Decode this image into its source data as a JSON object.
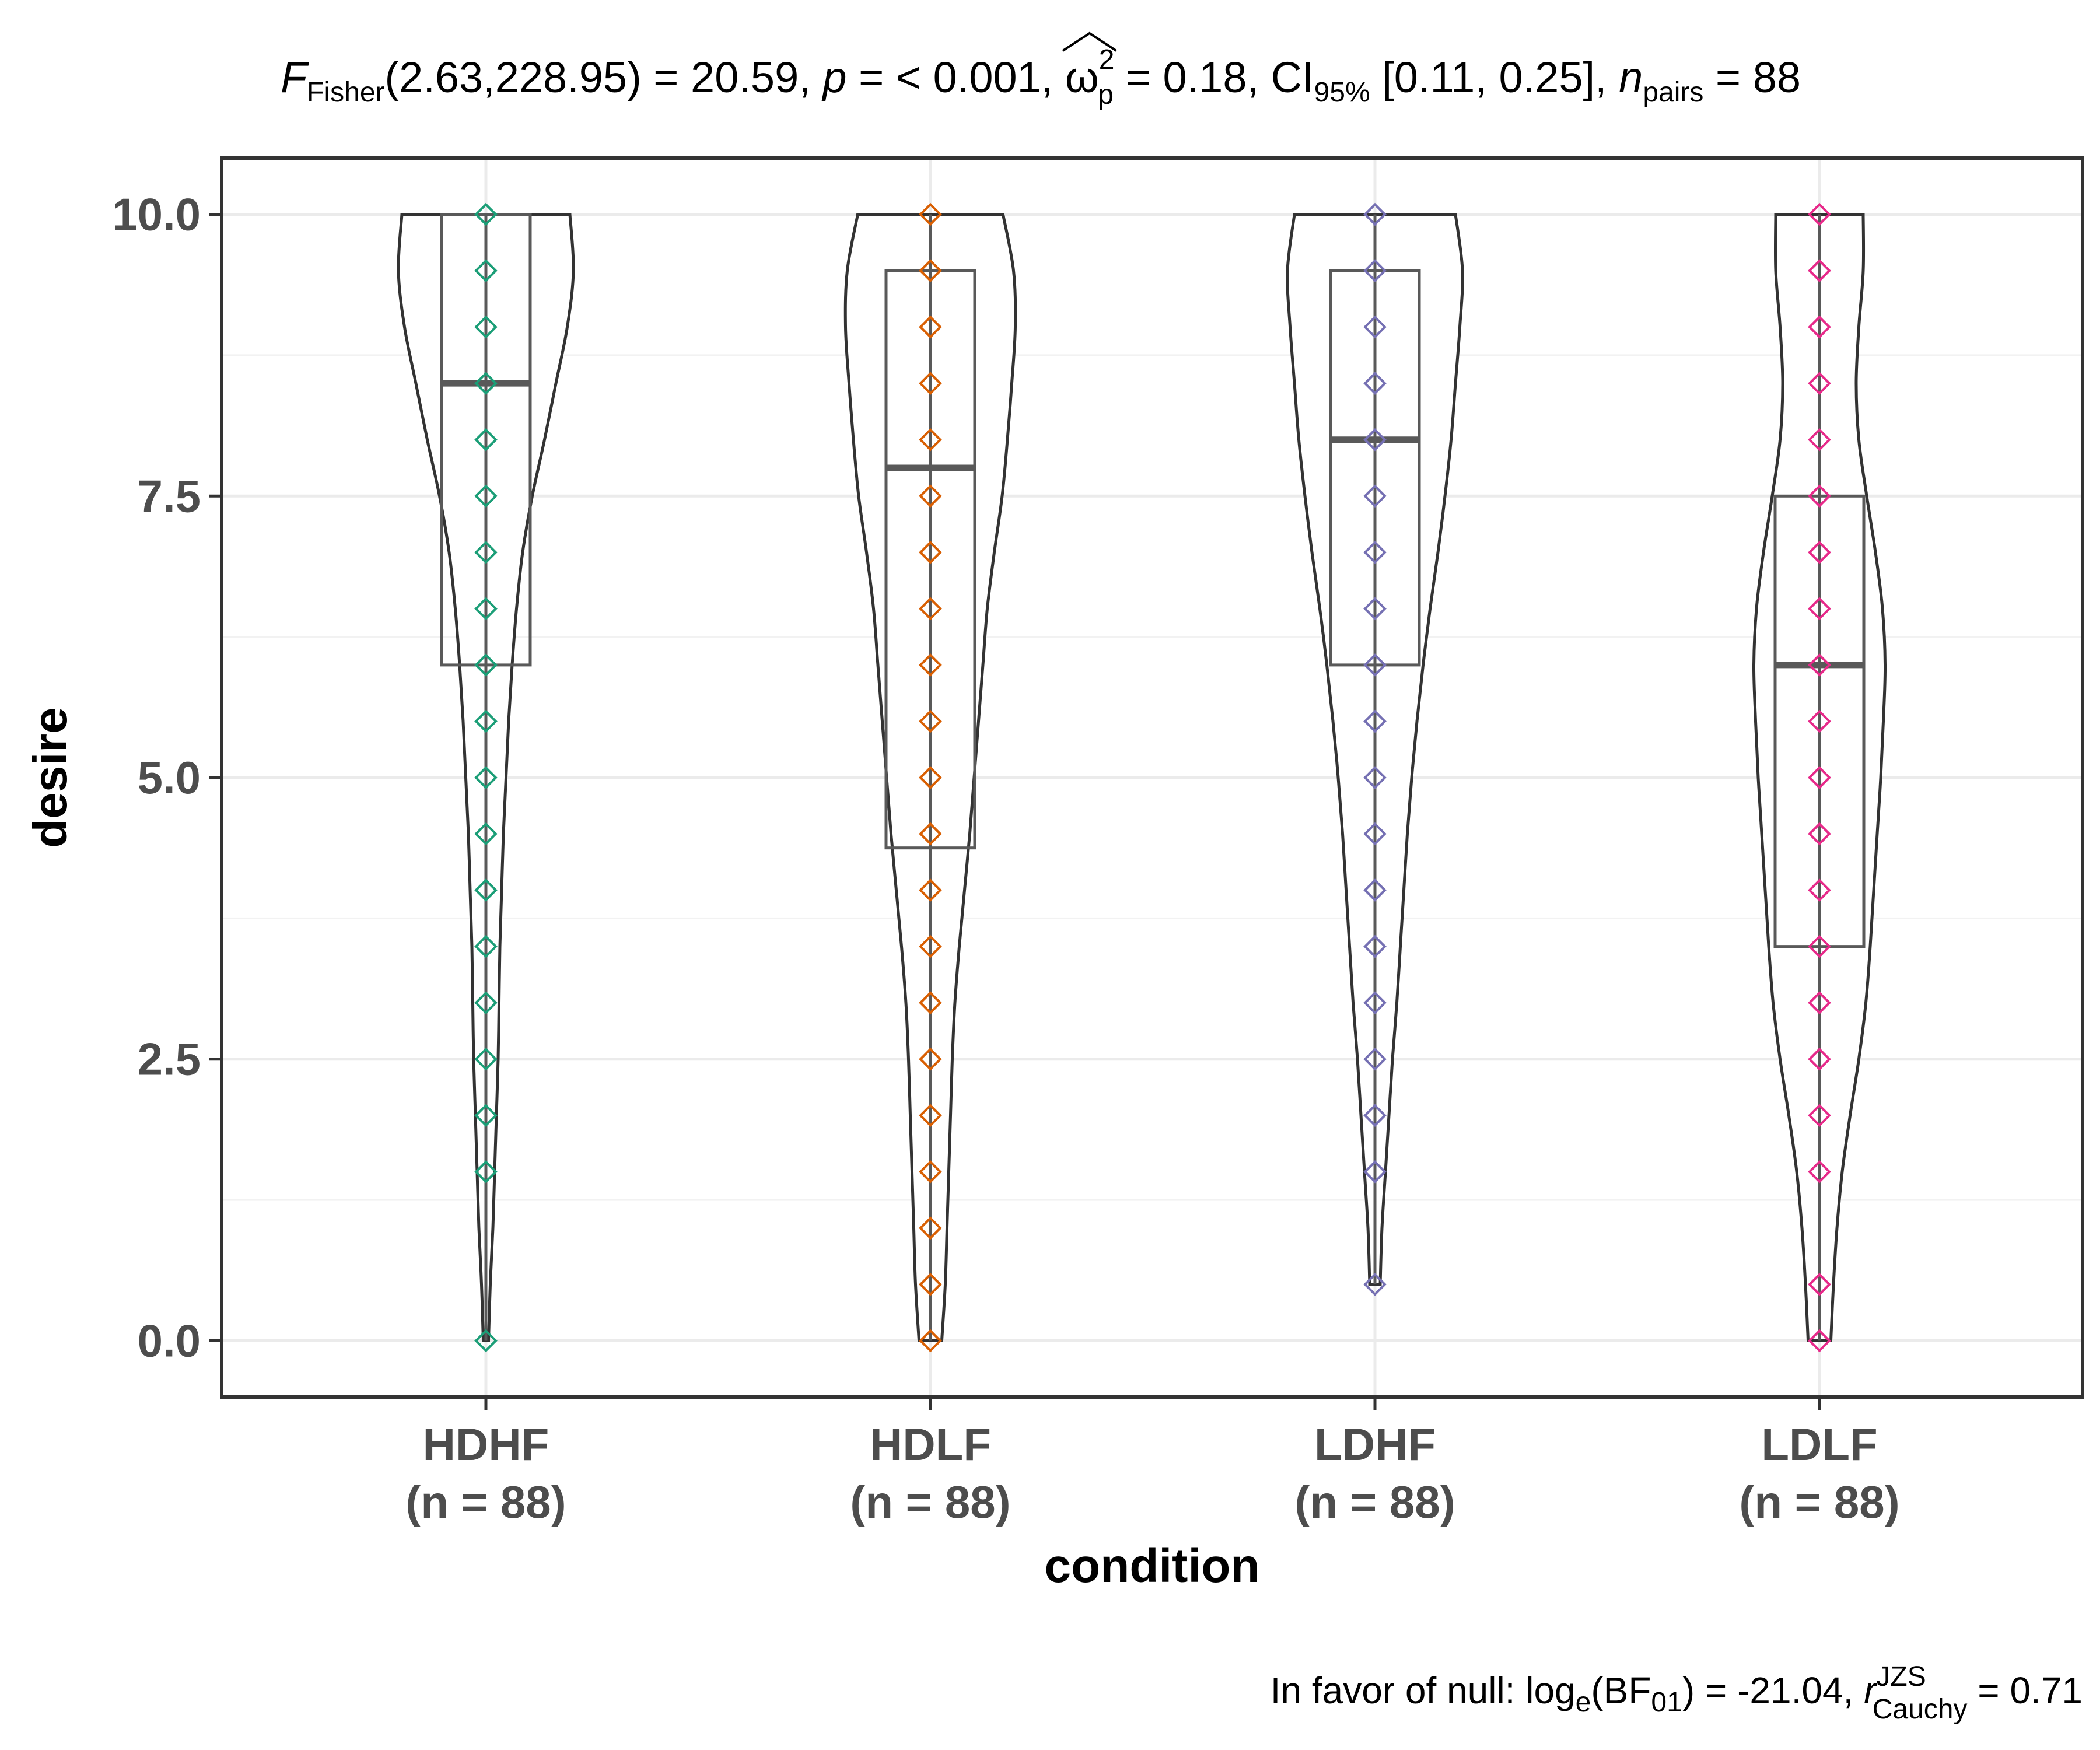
{
  "chart_data": {
    "type": "violin",
    "subtitle": {
      "f_symbol": "F",
      "f_sub": "Fisher",
      "f_args": "(2.63,228.95) = 20.59, ",
      "p_symbol": "p",
      "p_text": " = < 0.001, ",
      "omega_symbol": "ω",
      "omega_sup": "2",
      "omega_sub": "p",
      "omega_text": " = 0.18, CI",
      "ci_sub": "95%",
      "ci_text": " [0.11, 0.25], ",
      "n_symbol": "n",
      "n_sub": "pairs",
      "n_text": " = 88"
    },
    "caption": {
      "prefix": "In favor of null: log",
      "log_sub": "e",
      "bf_open": "(BF",
      "bf_sub": "01",
      "bf_close": ") = -21.04, ",
      "r_symbol": "r",
      "r_sup": "JZS",
      "r_sub": "Cauchy",
      "r_text": " = 0.71"
    },
    "xlabel": "condition",
    "ylabel": "desire",
    "ylim": [
      -0.5,
      10.5
    ],
    "yticks": [
      0.0,
      2.5,
      5.0,
      7.5,
      10.0
    ],
    "ytick_labels": [
      "0.0",
      "2.5",
      "5.0",
      "7.5",
      "10.0"
    ],
    "grid": true,
    "categories": [
      {
        "name": "HDHF",
        "n_label": "(n = 88)",
        "color": "#1b9e77",
        "points": [
          0,
          1.5,
          2,
          2.5,
          3,
          3.5,
          4,
          4.5,
          5,
          5.5,
          6,
          6.5,
          7,
          7.5,
          8,
          8.5,
          9,
          9.5,
          10
        ],
        "box": {
          "q1": 6.0,
          "median": 8.5,
          "q3": 10.0,
          "whisker_low": 0.0,
          "whisker_high": 10.0
        },
        "violin_min": 0.0,
        "violin_max": 10.0,
        "density": [
          [
            0.0,
            0.03
          ],
          [
            0.5,
            0.05
          ],
          [
            1.0,
            0.08
          ],
          [
            1.5,
            0.1
          ],
          [
            2.0,
            0.12
          ],
          [
            2.5,
            0.14
          ],
          [
            3.0,
            0.15
          ],
          [
            3.5,
            0.16
          ],
          [
            4.0,
            0.18
          ],
          [
            4.5,
            0.2
          ],
          [
            5.0,
            0.23
          ],
          [
            5.5,
            0.26
          ],
          [
            6.0,
            0.3
          ],
          [
            6.5,
            0.35
          ],
          [
            7.0,
            0.42
          ],
          [
            7.5,
            0.53
          ],
          [
            8.0,
            0.67
          ],
          [
            8.5,
            0.8
          ],
          [
            9.0,
            0.93
          ],
          [
            9.5,
            1.0
          ],
          [
            10.0,
            0.96
          ]
        ]
      },
      {
        "name": "HDLF",
        "n_label": "(n = 88)",
        "color": "#d95f02",
        "points": [
          0,
          0.5,
          1,
          1.5,
          2,
          2.5,
          3,
          3.5,
          4,
          4.5,
          5,
          5.5,
          6,
          6.5,
          7,
          7.5,
          8,
          8.5,
          9,
          9.5,
          10
        ],
        "box": {
          "q1": 4.375,
          "median": 7.75,
          "q3": 9.5,
          "whisker_low": 0.0,
          "whisker_high": 10.0
        },
        "violin_min": 0.0,
        "violin_max": 10.0,
        "density": [
          [
            0.0,
            0.13
          ],
          [
            0.5,
            0.17
          ],
          [
            1.0,
            0.19
          ],
          [
            1.5,
            0.21
          ],
          [
            2.0,
            0.23
          ],
          [
            2.5,
            0.25
          ],
          [
            3.0,
            0.28
          ],
          [
            3.5,
            0.33
          ],
          [
            4.0,
            0.39
          ],
          [
            4.5,
            0.45
          ],
          [
            5.0,
            0.5
          ],
          [
            5.5,
            0.55
          ],
          [
            6.0,
            0.6
          ],
          [
            6.5,
            0.65
          ],
          [
            7.0,
            0.73
          ],
          [
            7.5,
            0.82
          ],
          [
            8.0,
            0.88
          ],
          [
            8.5,
            0.93
          ],
          [
            9.0,
            0.97
          ],
          [
            9.5,
            0.95
          ],
          [
            10.0,
            0.83
          ]
        ]
      },
      {
        "name": "LDHF",
        "n_label": "(n = 88)",
        "color": "#7570b3",
        "points": [
          0.5,
          1.5,
          2,
          2.5,
          3,
          3.5,
          4,
          4.5,
          5,
          5.5,
          6,
          6.5,
          7,
          7.5,
          8,
          8.5,
          9,
          9.5,
          10
        ],
        "box": {
          "q1": 6.0,
          "median": 8.0,
          "q3": 9.5,
          "whisker_low": 0.5,
          "whisker_high": 10.0
        },
        "violin_min": 0.5,
        "violin_max": 10.0,
        "density": [
          [
            0.5,
            0.06
          ],
          [
            1.0,
            0.08
          ],
          [
            1.5,
            0.12
          ],
          [
            2.0,
            0.16
          ],
          [
            2.5,
            0.2
          ],
          [
            3.0,
            0.25
          ],
          [
            3.5,
            0.29
          ],
          [
            4.0,
            0.33
          ],
          [
            4.5,
            0.37
          ],
          [
            5.0,
            0.42
          ],
          [
            5.5,
            0.48
          ],
          [
            6.0,
            0.55
          ],
          [
            6.5,
            0.63
          ],
          [
            7.0,
            0.72
          ],
          [
            7.5,
            0.8
          ],
          [
            8.0,
            0.87
          ],
          [
            8.5,
            0.92
          ],
          [
            9.0,
            0.97
          ],
          [
            9.5,
            1.0
          ],
          [
            10.0,
            0.92
          ]
        ]
      },
      {
        "name": "LDLF",
        "n_label": "(n = 88)",
        "color": "#e7298a",
        "points": [
          0,
          0.5,
          1.5,
          2,
          2.5,
          3,
          3.5,
          4,
          4.5,
          5,
          5.5,
          6,
          6.5,
          7,
          7.5,
          8,
          8.5,
          9,
          9.5,
          10
        ],
        "box": {
          "q1": 3.5,
          "median": 6.0,
          "q3": 7.5,
          "whisker_low": 0.0,
          "whisker_high": 10.0
        },
        "violin_min": 0.0,
        "violin_max": 10.0,
        "density": [
          [
            0.0,
            0.13
          ],
          [
            0.5,
            0.16
          ],
          [
            1.0,
            0.2
          ],
          [
            1.5,
            0.26
          ],
          [
            2.0,
            0.35
          ],
          [
            2.5,
            0.45
          ],
          [
            3.0,
            0.53
          ],
          [
            3.5,
            0.58
          ],
          [
            4.0,
            0.62
          ],
          [
            4.5,
            0.66
          ],
          [
            5.0,
            0.7
          ],
          [
            5.5,
            0.73
          ],
          [
            6.0,
            0.75
          ],
          [
            6.5,
            0.72
          ],
          [
            7.0,
            0.64
          ],
          [
            7.5,
            0.54
          ],
          [
            8.0,
            0.45
          ],
          [
            8.5,
            0.42
          ],
          [
            9.0,
            0.45
          ],
          [
            9.5,
            0.5
          ],
          [
            10.0,
            0.5
          ]
        ]
      }
    ]
  }
}
